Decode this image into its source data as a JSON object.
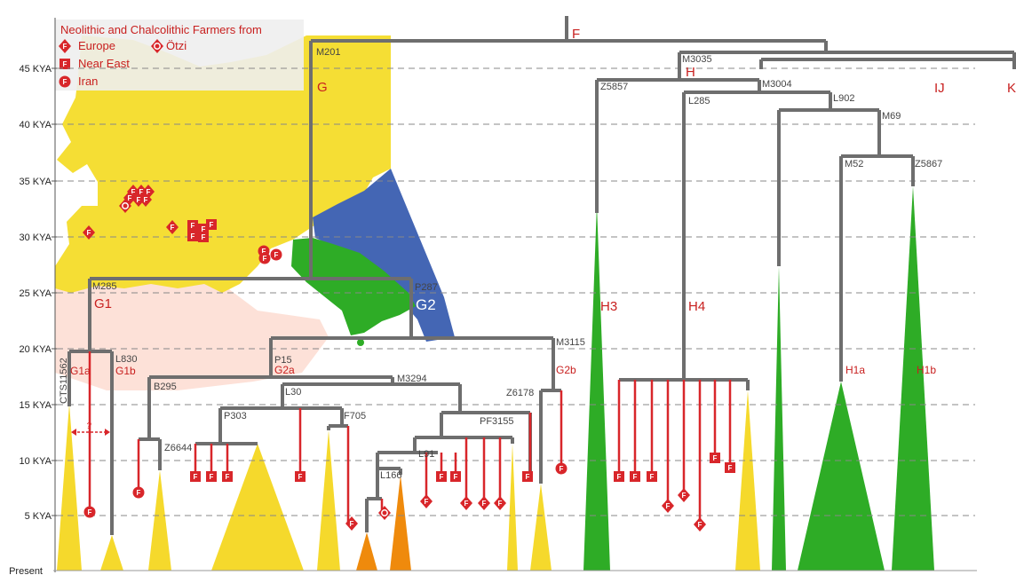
{
  "root_label": "F",
  "legend": {
    "title": "Neolithic and Chalcolithic Farmers from",
    "europe": "Europe",
    "otzi": "Ötzi",
    "near_east": "Near East",
    "iran": "Iran"
  },
  "marker_letter": "F",
  "axis": {
    "ticks": [
      "45 KYA",
      "40 KYA",
      "35 KYA",
      "30 KYA",
      "25 KYA",
      "20 KYA",
      "15 KYA",
      "10 KYA",
      "5 KYA",
      "Present"
    ],
    "values_kya": [
      45,
      40,
      35,
      30,
      25,
      20,
      15,
      10,
      5,
      0
    ]
  },
  "nodes": {
    "m201": "M201",
    "m285": "M285",
    "p287": "P287",
    "l830": "L830",
    "cts": "CTS11562",
    "p15": "P15",
    "m3115": "M3115",
    "b295": "B295",
    "m3294": "M3294",
    "l30": "L30",
    "p303": "P303",
    "f705": "F705",
    "z6644": "Z6644",
    "z6178": "Z6178",
    "pf3155": "PF3155",
    "l91": "L91",
    "l166": "L166",
    "m3035": "M3035",
    "z5857": "Z5857",
    "m3004": "M3004",
    "l285": "L285",
    "l902": "L902",
    "m69": "M69",
    "m52": "M52",
    "z5867": "Z5867"
  },
  "haplogroups": {
    "g": "G",
    "g1": "G1",
    "g2": "G2",
    "g1a": "G1a",
    "g1b": "G1b",
    "g2a": "G2a",
    "g2b": "G2b",
    "h": "H",
    "h3": "H3",
    "h4": "H4",
    "h1a": "H1a",
    "h1b": "H1b",
    "ij": "IJ",
    "k": "K"
  },
  "uncertain": "?",
  "colors": {
    "red": "#c8201f",
    "yellow": "#f5d92c",
    "green": "#2eac26",
    "blue": "#4466b4",
    "orange": "#ef8a0c",
    "branch": "#6e6e6e"
  }
}
